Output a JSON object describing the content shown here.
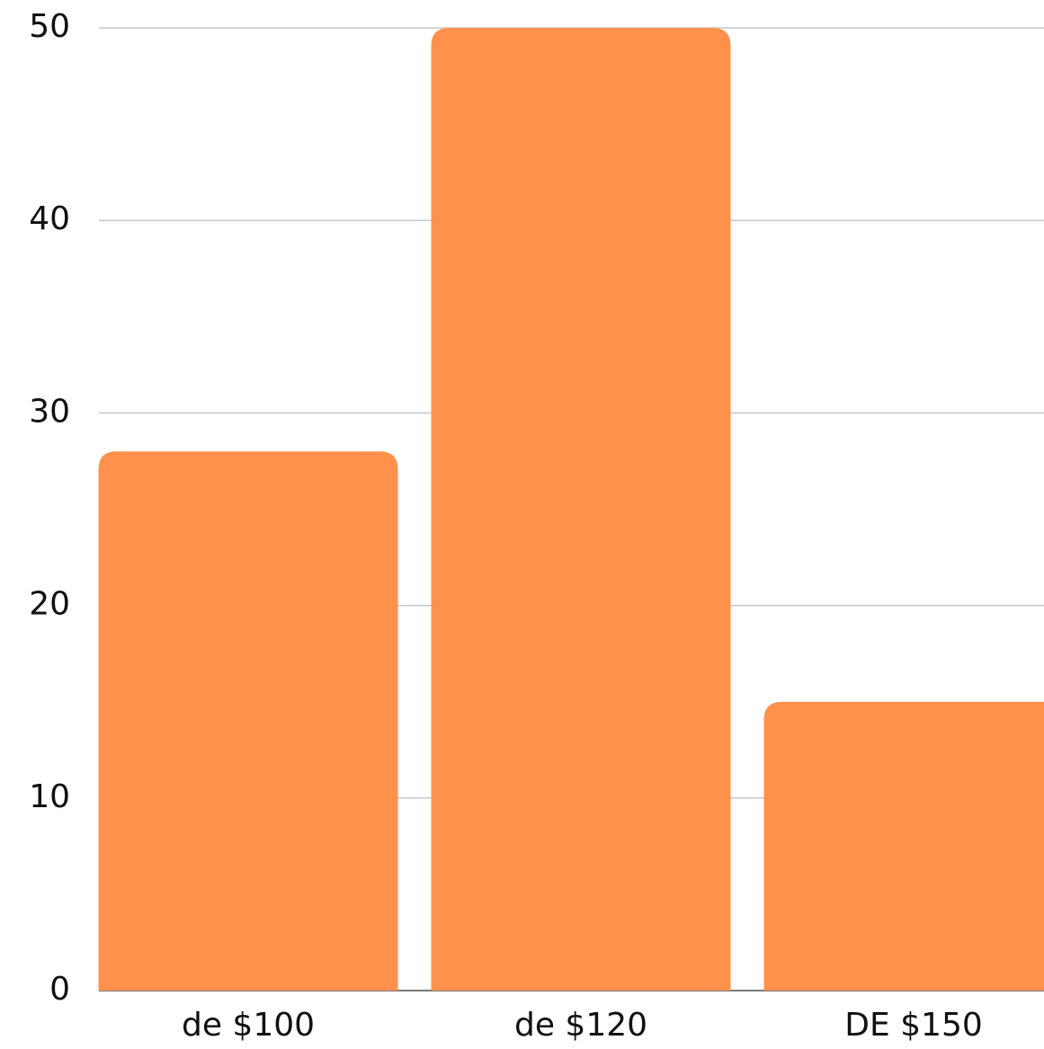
{
  "chart_data": {
    "type": "bar",
    "categories": [
      "de $100",
      "de $120",
      "DE $150"
    ],
    "values": [
      28,
      50,
      15
    ],
    "color": "#ff914d",
    "ylim": [
      0,
      50
    ],
    "yticks": [
      0,
      10,
      20,
      30,
      40,
      50
    ],
    "grid": true
  }
}
